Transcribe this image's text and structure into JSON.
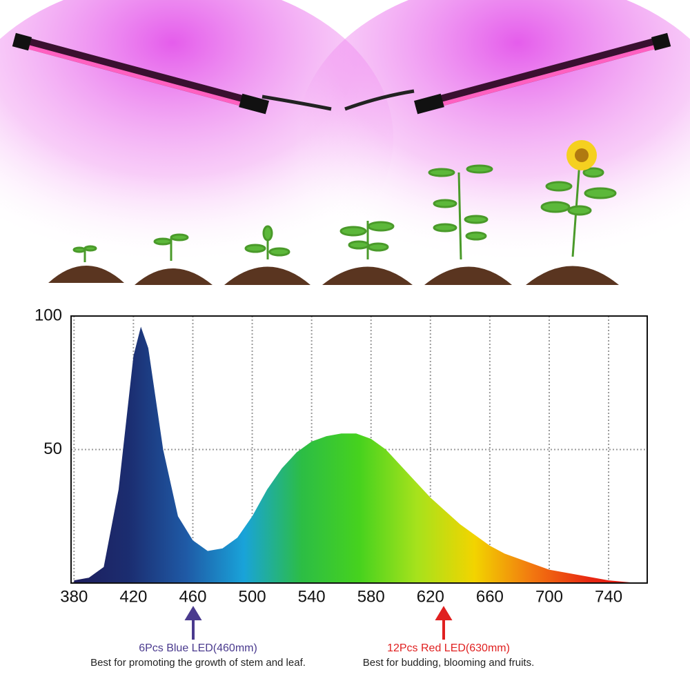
{
  "chart_data": {
    "type": "area",
    "x": [
      380,
      390,
      400,
      410,
      420,
      425,
      430,
      440,
      450,
      460,
      470,
      480,
      490,
      500,
      510,
      520,
      530,
      540,
      550,
      560,
      570,
      580,
      590,
      600,
      610,
      620,
      630,
      640,
      650,
      660,
      670,
      680,
      690,
      700,
      710,
      720,
      730,
      740,
      750,
      760
    ],
    "values": [
      1,
      2,
      6,
      35,
      85,
      96,
      88,
      50,
      25,
      16,
      12,
      13,
      17,
      25,
      35,
      43,
      49,
      53,
      55,
      56,
      56,
      54,
      50,
      44,
      38,
      32,
      27,
      22,
      18,
      14,
      11,
      9,
      7,
      5,
      4,
      3,
      2,
      1,
      0.5,
      0
    ],
    "colors": [
      "#1e1d5c",
      "#1b2d70",
      "#1f5aa6",
      "#19a3d9",
      "#2cbd45",
      "#46d21e",
      "#a6e21c",
      "#f2d400",
      "#f27810",
      "#e82812",
      "#e01010"
    ],
    "xlim": [
      378,
      766
    ],
    "ylim": [
      0,
      100
    ],
    "xticks": [
      380,
      420,
      460,
      500,
      540,
      580,
      620,
      660,
      700,
      740
    ],
    "yticks": [
      50,
      100
    ],
    "grid": true,
    "annotations": [
      {
        "text": "6Pcs Blue LED(460mm)",
        "note": "Best for promoting the growth of stem and leaf.",
        "color": "#4a3a8e"
      },
      {
        "text": "12Pcs Red LED(630mm)",
        "note": "Best for budding, blooming and fruits.",
        "color": "#e02020"
      }
    ]
  }
}
